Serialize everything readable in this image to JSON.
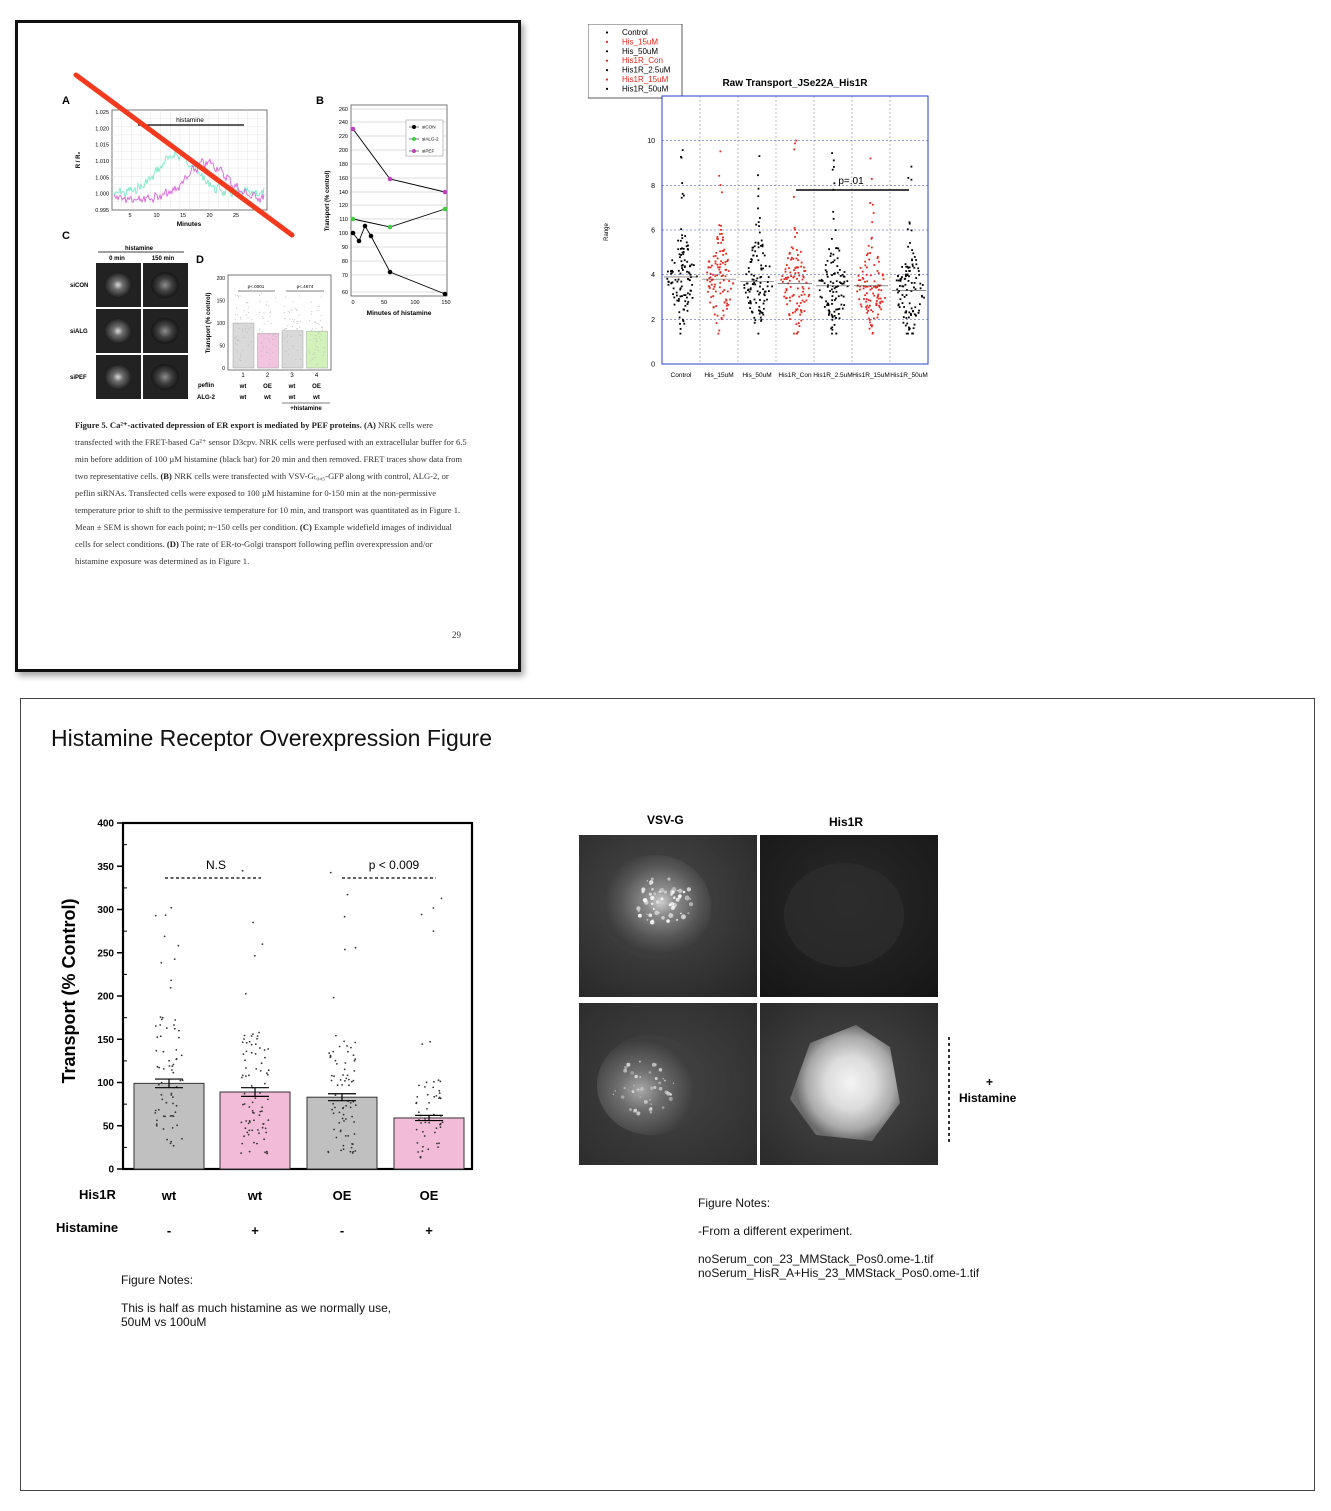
{
  "paper": {
    "panel_labels": [
      "A",
      "B",
      "C",
      "D"
    ],
    "panel_a": {
      "bar_label": "histamine",
      "ylabel": "R / R₀",
      "yticks": [
        "1.025",
        "1.020",
        "1.015",
        "1.010",
        "1.005",
        "1.000",
        "0.995"
      ],
      "xticks": [
        "5",
        "10",
        "15",
        "20",
        "25"
      ],
      "xlabel": "Minutes"
    },
    "panel_b": {
      "ylabel": "Transport (% control)",
      "xlabel": "Minutes of histamine",
      "yticks": [
        "260",
        "240",
        "220",
        "200",
        "180",
        "160",
        "140",
        "120",
        "110",
        "100",
        "90",
        "80",
        "70",
        "60"
      ],
      "xticks": [
        "0",
        "50",
        "100",
        "150"
      ],
      "legend": [
        "siCON",
        "siALG-2",
        "siPEF"
      ],
      "colors": {
        "siCON": "#000000",
        "siALG-2": "#3ecf3e",
        "siPEF": "#c040c0"
      }
    },
    "panel_c": {
      "header": "histamine",
      "columns": [
        "0 min",
        "150 min"
      ],
      "rows": [
        "siCON",
        "siALG",
        "siPEF"
      ]
    },
    "panel_d": {
      "ylabel": "Transport (% control)",
      "yticks": [
        "200",
        "150",
        "100",
        "50",
        "0"
      ],
      "pvalues": [
        "p<.0001",
        "p<.4674"
      ],
      "bar_numbers": [
        "1",
        "2",
        "3",
        "4"
      ],
      "row1_label": "peflin",
      "row1": [
        "wt",
        "OE",
        "wt",
        "OE"
      ],
      "row2_label": "ALG-2",
      "row2": [
        "wt",
        "wt",
        "wt",
        "wt"
      ],
      "footnote": "+histamine"
    },
    "caption": {
      "title": "Figure 5.  Ca²⁺-activated depression of ER export is mediated by PEF proteins.",
      "a_label": "(A)",
      "a_text": "NRK cells were transfected with the FRET-based Ca²⁺ sensor D3cpv.  NRK cells were perfused with an extracellular buffer for 6.5 min before addition of 100 µM histamine (black bar) for 20 min and then removed.  FRET traces show data from two representative cells.",
      "b_label": "(B)",
      "b_text": "NRK cells were transfected with VSV-Gₜ₀₄₅-GFP along with control, ALG-2, or peflin siRNAs.  Transfected cells were exposed to 100 µM histamine for 0-150 min at the non-permissive temperature prior to shift to the permissive temperature for 10 min, and transport was quantitated as in Figure 1.  Mean ± SEM is shown for each point; n~150 cells per condition.",
      "c_label": "(C)",
      "c_text": "Example widefield images of individual cells for select conditions.",
      "d_label": "(D)",
      "d_text": "The rate of ER-to-Golgi transport following peflin overexpression and/or histamine exposure was determined as in Figure 1."
    },
    "page_number": "29"
  },
  "raw_chart": {
    "title": "Raw Transport_JSe22A_His1R",
    "ylabel": "Range",
    "yticks": [
      "0",
      "2",
      "4",
      "6",
      "8",
      "10"
    ],
    "categories": [
      "Control",
      "His_15uM",
      "His_50uM",
      "His1R_Con",
      "His1R_2.5uM",
      "His1R_15uM",
      "His1R_50uM"
    ],
    "legend": [
      "Control",
      "His_15uM",
      "His_50uM",
      "His1R_Con",
      "His1R_2.5uM",
      "His1R_15uM",
      "His1R_50uM"
    ],
    "colors": [
      "#000000",
      "#e8261e",
      "#000000",
      "#e8261e",
      "#000000",
      "#e8261e",
      "#000000"
    ],
    "pvalue": "p=.01",
    "ylim": [
      0,
      12
    ]
  },
  "slide": {
    "title": "Histamine Receptor Overexpression Figure",
    "bar_chart": {
      "ylabel": "Transport (% Control)",
      "yticks": [
        "0",
        "50",
        "100",
        "150",
        "200",
        "250",
        "300",
        "350",
        "400"
      ],
      "ylim": [
        0,
        400
      ],
      "values": [
        99,
        89,
        83,
        59
      ],
      "errors": [
        5,
        5,
        4,
        3
      ],
      "colors": [
        "#c0c0c0",
        "#f2bcd8",
        "#c0c0c0",
        "#f2bcd8"
      ],
      "sig": [
        {
          "label": "N.S"
        },
        {
          "label": "p < 0.009"
        }
      ],
      "row1_label": "His1R",
      "row1": [
        "wt",
        "wt",
        "OE",
        "OE"
      ],
      "row2_label": "Histamine",
      "row2": [
        "-",
        "+",
        "-",
        "+"
      ]
    },
    "notes_left": {
      "heading": "Figure Notes:",
      "line1": "This is half as much histamine as we normally use,",
      "line2": "50uM vs 100uM"
    },
    "micro": {
      "col1": "VSV-G",
      "col2": "His1R",
      "side_plus": "+",
      "side_label": "Histamine"
    },
    "notes_right": {
      "heading": "Figure Notes:",
      "line1": "-From a different experiment.",
      "file1": "noSerum_con_23_MMStack_Pos0.ome-1.tif",
      "file2": "noSerum_HisR_A+His_23_MMStack_Pos0.ome-1.tif"
    }
  }
}
